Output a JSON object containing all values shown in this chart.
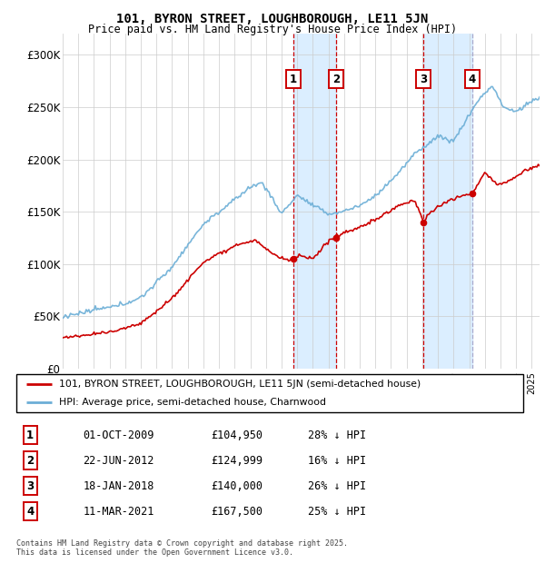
{
  "title": "101, BYRON STREET, LOUGHBOROUGH, LE11 5JN",
  "subtitle": "Price paid vs. HM Land Registry's House Price Index (HPI)",
  "ylim": [
    0,
    320000
  ],
  "xlim_start": 1995.0,
  "xlim_end": 2025.5,
  "yticks": [
    0,
    50000,
    100000,
    150000,
    200000,
    250000,
    300000
  ],
  "ytick_labels": [
    "£0",
    "£50K",
    "£100K",
    "£150K",
    "£200K",
    "£250K",
    "£300K"
  ],
  "hpi_color": "#6baed6",
  "price_color": "#cc0000",
  "shading_color": "#dbeeff",
  "grid_color": "#cccccc",
  "legend_label_red": "101, BYRON STREET, LOUGHBOROUGH, LE11 5JN (semi-detached house)",
  "legend_label_blue": "HPI: Average price, semi-detached house, Charnwood",
  "transactions": [
    {
      "label": "1",
      "date": 2009.75,
      "price": 104950,
      "text": "01-OCT-2009",
      "price_text": "£104,950",
      "pct_text": "28% ↓ HPI",
      "line_style": "--",
      "line_color": "#cc0000"
    },
    {
      "label": "2",
      "date": 2012.47,
      "price": 124999,
      "text": "22-JUN-2012",
      "price_text": "£124,999",
      "pct_text": "16% ↓ HPI",
      "line_style": "--",
      "line_color": "#cc0000"
    },
    {
      "label": "3",
      "date": 2018.05,
      "price": 140000,
      "text": "18-JAN-2018",
      "price_text": "£140,000",
      "pct_text": "26% ↓ HPI",
      "line_style": "--",
      "line_color": "#cc0000"
    },
    {
      "label": "4",
      "date": 2021.19,
      "price": 167500,
      "text": "11-MAR-2021",
      "price_text": "£167,500",
      "pct_text": "25% ↓ HPI",
      "line_style": "--",
      "line_color": "#aaaacc"
    }
  ],
  "footer_line1": "Contains HM Land Registry data © Crown copyright and database right 2025.",
  "footer_line2": "This data is licensed under the Open Government Licence v3.0."
}
